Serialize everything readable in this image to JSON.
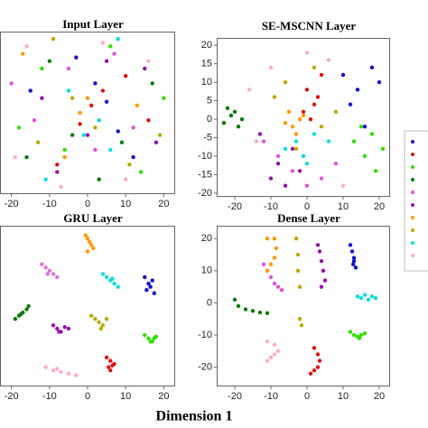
{
  "figure": {
    "xlabel": "Dimension  1"
  },
  "chart_data": [
    {
      "type": "scatter",
      "title": "Input Layer",
      "xlim": [
        -23,
        23
      ],
      "ylim": [
        -22,
        22
      ],
      "xticks": [
        -20,
        -10,
        0,
        10,
        20
      ],
      "series": [
        {
          "color": "#1010cc",
          "x": [
            2,
            5,
            8,
            -3,
            12,
            -15
          ],
          "y": [
            8,
            3,
            -5,
            15,
            -12,
            6
          ]
        },
        {
          "color": "#dd1111",
          "x": [
            1,
            4,
            -2,
            10,
            -8,
            16
          ],
          "y": [
            2,
            6,
            -3,
            10,
            -14,
            -2
          ]
        },
        {
          "color": "#33dd00",
          "x": [
            -18,
            6,
            14,
            -6,
            20,
            -12
          ],
          "y": [
            -4,
            18,
            -16,
            -10,
            4,
            12
          ]
        },
        {
          "color": "#0a7a0a",
          "x": [
            -10,
            3,
            17,
            -4,
            9,
            -16
          ],
          "y": [
            14,
            -18,
            8,
            -6,
            -8,
            -12
          ]
        },
        {
          "color": "#dd55dd",
          "x": [
            -14,
            -5,
            7,
            12,
            -20,
            2
          ],
          "y": [
            -2,
            12,
            16,
            -4,
            8,
            -10
          ]
        },
        {
          "color": "#9911aa",
          "x": [
            -8,
            0,
            15,
            -12,
            5,
            18
          ],
          "y": [
            -16,
            -6,
            12,
            4,
            14,
            -8
          ]
        },
        {
          "color": "#ff9900",
          "x": [
            -2,
            0,
            3,
            -6,
            13,
            -17
          ],
          "y": [
            0,
            4,
            -2,
            -12,
            2,
            16
          ]
        },
        {
          "color": "#bbaa00",
          "x": [
            -4,
            2,
            -9,
            11,
            19,
            -13
          ],
          "y": [
            4,
            -4,
            20,
            -14,
            -6,
            -8
          ]
        },
        {
          "color": "#11dddd",
          "x": [
            -1,
            3,
            -5,
            6,
            -11,
            8
          ],
          "y": [
            -6,
            -2,
            6,
            -10,
            -18,
            20
          ]
        },
        {
          "color": "#ffaacc",
          "x": [
            -16,
            -7,
            10,
            4,
            -19,
            16
          ],
          "y": [
            18,
            -20,
            -18,
            19,
            -12,
            14
          ]
        }
      ]
    },
    {
      "type": "scatter",
      "title": "SE-MSCNN Layer",
      "xlim": [
        -25,
        23
      ],
      "ylim": [
        -21,
        22
      ],
      "xticks": [
        -20,
        -10,
        0,
        10,
        20
      ],
      "yticks": [
        20,
        15,
        10,
        5,
        0,
        -5,
        -10,
        -15,
        -20
      ],
      "series": [
        {
          "color": "#1010cc",
          "x": [
            10,
            14,
            18,
            12,
            16,
            20
          ],
          "y": [
            12,
            8,
            14,
            4,
            -2,
            10
          ]
        },
        {
          "color": "#dd1111",
          "x": [
            0,
            2,
            -1,
            4,
            1,
            3
          ],
          "y": [
            8,
            4,
            2,
            12,
            0,
            6
          ]
        },
        {
          "color": "#33dd00",
          "x": [
            13,
            16,
            19,
            15,
            18,
            21
          ],
          "y": [
            -6,
            -10,
            -14,
            -2,
            -4,
            -8
          ]
        },
        {
          "color": "#0a7a0a",
          "x": [
            -22,
            -20,
            -23,
            -18,
            -21,
            -19
          ],
          "y": [
            3,
            2,
            -1,
            0,
            1,
            -2
          ]
        },
        {
          "color": "#dd55dd",
          "x": [
            -8,
            -4,
            4,
            -12,
            8,
            0
          ],
          "y": [
            -10,
            -14,
            -16,
            -6,
            -12,
            -18
          ]
        },
        {
          "color": "#9911aa",
          "x": [
            -8,
            -4,
            -10,
            -6,
            -2,
            -13
          ],
          "y": [
            -12,
            -8,
            -16,
            -18,
            -14,
            -4
          ]
        },
        {
          "color": "#ff9900",
          "x": [
            -4,
            -2,
            -5,
            -3,
            -1,
            -6
          ],
          "y": [
            -2,
            0,
            2,
            -4,
            1,
            -1
          ]
        },
        {
          "color": "#bbaa00",
          "x": [
            -6,
            4,
            -9,
            2,
            8,
            -3
          ],
          "y": [
            10,
            -2,
            6,
            14,
            2,
            -8
          ]
        },
        {
          "color": "#11dddd",
          "x": [
            -3,
            -6,
            2,
            -1,
            6,
            0
          ],
          "y": [
            -6,
            -8,
            -4,
            -10,
            -6,
            -12
          ]
        },
        {
          "color": "#ffaacc",
          "x": [
            -10,
            -14,
            6,
            -16,
            10,
            0
          ],
          "y": [
            14,
            -6,
            16,
            8,
            -18,
            18
          ]
        }
      ]
    },
    {
      "type": "scatter",
      "title": "GRU Layer",
      "xlim": [
        -23,
        23
      ],
      "ylim": [
        -25,
        25
      ],
      "xticks": [
        -20,
        -10,
        0,
        10,
        20
      ],
      "series": [
        {
          "color": "#1010cc",
          "x": [
            15,
            16,
            17,
            15.5,
            16.5,
            17.5
          ],
          "y": [
            9,
            7,
            8,
            5,
            6,
            4
          ]
        },
        {
          "color": "#dd1111",
          "x": [
            5,
            6,
            7,
            5.5,
            6.5,
            6
          ],
          "y": [
            -16,
            -17,
            -18,
            -19,
            -18.5,
            -20
          ]
        },
        {
          "color": "#33dd00",
          "x": [
            15,
            16,
            17,
            18,
            16.5,
            17.5
          ],
          "y": [
            -9,
            -10,
            -11,
            -9.5,
            -11,
            -10
          ]
        },
        {
          "color": "#0a7a0a",
          "x": [
            -19,
            -18,
            -17,
            -16,
            -15.5,
            -17.5
          ],
          "y": [
            -4,
            -3,
            -2,
            -1,
            0,
            -2.5
          ]
        },
        {
          "color": "#e070e0",
          "x": [
            -12,
            -11,
            -10,
            -9,
            -8,
            -10.5
          ],
          "y": [
            13,
            12,
            11,
            10,
            9,
            10
          ]
        },
        {
          "color": "#9911aa",
          "x": [
            -9,
            -8,
            -7,
            -6,
            -5,
            -7.5
          ],
          "y": [
            -6,
            -7,
            -8,
            -6.5,
            -7,
            -8
          ]
        },
        {
          "color": "#ff9900",
          "x": [
            -0.5,
            0,
            0.5,
            1,
            1.5,
            0
          ],
          "y": [
            22,
            21,
            20,
            19,
            18,
            17
          ]
        },
        {
          "color": "#bbaa00",
          "x": [
            1,
            2,
            3,
            4,
            5,
            3.5
          ],
          "y": [
            -3,
            -4,
            -5,
            -6,
            -4,
            -7
          ]
        },
        {
          "color": "#11dddd",
          "x": [
            4,
            5,
            6,
            7,
            8,
            6.5
          ],
          "y": [
            10,
            9,
            8,
            7,
            6,
            8.5
          ]
        },
        {
          "color": "#ffaacc",
          "x": [
            -11,
            -9,
            -7,
            -5,
            -3,
            -8
          ],
          "y": [
            -19,
            -20,
            -20.5,
            -21,
            -21.5,
            -19.5
          ]
        }
      ]
    },
    {
      "type": "scatter",
      "title": "Dense Layer",
      "xlim": [
        -25,
        23
      ],
      "ylim": [
        -26,
        24
      ],
      "xticks": [
        -20,
        -10,
        0,
        10,
        20
      ],
      "yticks": [
        20,
        10,
        0,
        -10,
        -20
      ],
      "series": [
        {
          "color": "#1010cc",
          "x": [
            12,
            12.5,
            13,
            12.8,
            13.5,
            13
          ],
          "y": [
            18,
            16,
            14,
            12,
            11,
            13
          ]
        },
        {
          "color": "#dd1111",
          "x": [
            2,
            3,
            3.5,
            3,
            2,
            1
          ],
          "y": [
            -14,
            -16,
            -18,
            -20,
            -21,
            -22
          ]
        },
        {
          "color": "#33dd00",
          "x": [
            12,
            13,
            14,
            15,
            16,
            14.5
          ],
          "y": [
            -9,
            -10,
            -10.5,
            -10,
            -9.5,
            -11
          ]
        },
        {
          "color": "#0a7a0a",
          "x": [
            -20,
            -19,
            -17,
            -15,
            -13,
            -11
          ],
          "y": [
            1,
            -1,
            -2,
            -2.5,
            -3,
            -3.2
          ]
        },
        {
          "color": "#dd55dd",
          "x": [
            -12,
            -11,
            -10,
            -9,
            -8,
            -7
          ],
          "y": [
            12,
            10,
            8,
            6,
            5,
            4
          ]
        },
        {
          "color": "#9911aa",
          "x": [
            3,
            3.5,
            4,
            4.5,
            5,
            4
          ],
          "y": [
            18,
            16,
            13,
            10,
            7,
            5
          ]
        },
        {
          "color": "#ff9900",
          "x": [
            -11,
            -9,
            -8.5,
            -9,
            -10,
            -11
          ],
          "y": [
            20,
            20,
            17,
            14,
            12,
            10
          ]
        },
        {
          "color": "#bbaa00",
          "x": [
            -3,
            -2.5,
            -2.5,
            -2,
            -2,
            -1.5
          ],
          "y": [
            20,
            15,
            10,
            5,
            -5,
            -7
          ]
        },
        {
          "color": "#11dddd",
          "x": [
            14,
            15,
            16,
            17,
            18,
            19
          ],
          "y": [
            2,
            1.5,
            2.5,
            1,
            2,
            1.5
          ]
        },
        {
          "color": "#ffaacc",
          "x": [
            -11,
            -9,
            -8,
            -9,
            -10,
            -11
          ],
          "y": [
            -12,
            -13,
            -15,
            -16,
            -17,
            -18
          ]
        }
      ]
    }
  ]
}
